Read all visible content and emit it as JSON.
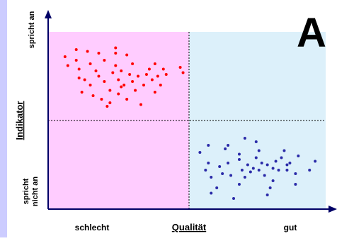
{
  "chart_data": {
    "type": "scatter",
    "annotation": "A",
    "xlabel": "Qualität",
    "ylabel": "Indikator",
    "x_categories": [
      "schlecht",
      "gut"
    ],
    "y_categories": [
      [
        "spricht",
        "nicht an"
      ],
      [
        "spricht an"
      ]
    ],
    "xlim": [
      0,
      100
    ],
    "ylim": [
      0,
      100
    ],
    "series": [
      {
        "color": "#ff0000",
        "x": [
          6,
          7,
          10,
          10,
          11,
          11,
          12,
          13,
          14,
          15,
          15,
          16,
          17,
          18,
          18,
          19,
          20,
          20,
          21,
          22,
          23,
          24,
          24,
          24,
          25,
          25,
          26,
          27,
          28,
          28,
          29,
          30,
          30,
          31,
          32,
          33,
          34,
          35,
          36,
          37,
          38,
          39,
          40,
          41,
          42,
          38,
          47,
          48,
          22,
          26
        ],
        "values": [
          86,
          81,
          90,
          84,
          79,
          74,
          66,
          73,
          89,
          82,
          70,
          64,
          78,
          88,
          75,
          62,
          84,
          72,
          58,
          67,
          77,
          88,
          91,
          81,
          73,
          65,
          78,
          70,
          62,
          87,
          76,
          72,
          82,
          67,
          75,
          59,
          70,
          76,
          79,
          73,
          82,
          75,
          70,
          79,
          76,
          66,
          80,
          77,
          60,
          69
        ]
      },
      {
        "color": "#2a2aa8",
        "x": [
          54,
          56,
          57,
          57,
          58,
          58,
          61,
          62,
          63,
          64,
          64,
          65,
          68,
          68,
          68,
          69,
          70,
          70,
          71,
          72,
          73,
          74,
          74,
          75,
          75,
          76,
          77,
          78,
          78,
          79,
          80,
          80,
          81,
          82,
          83,
          84,
          85,
          85,
          86,
          88,
          88,
          89,
          93,
          95,
          66,
          60
        ],
        "values": [
          32,
          22,
          26,
          36,
          18,
          9,
          24,
          20,
          34,
          36,
          26,
          19,
          14,
          28,
          31,
          22,
          40,
          18,
          25,
          21,
          23,
          29,
          38,
          22,
          33,
          26,
          19,
          25,
          8,
          12,
          16,
          23,
          27,
          22,
          29,
          33,
          25,
          22,
          26,
          20,
          14,
          30,
          22,
          27,
          6,
          12
        ]
      }
    ]
  }
}
